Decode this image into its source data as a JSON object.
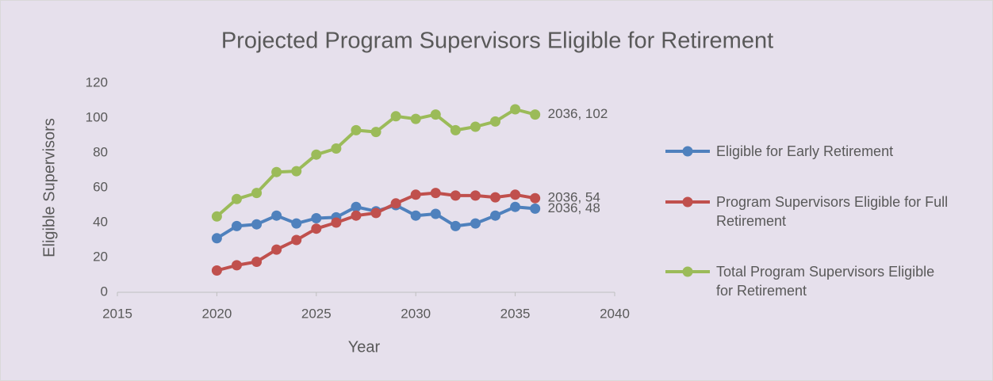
{
  "chart_data": {
    "type": "line",
    "title": "Projected Program Supervisors Eligible for Retirement",
    "x_label": "Year",
    "y_label": "Eligible Supervisors",
    "x": [
      2020,
      2021,
      2022,
      2023,
      2024,
      2025,
      2026,
      2027,
      2028,
      2029,
      2030,
      2031,
      2032,
      2033,
      2034,
      2035,
      2036
    ],
    "series": [
      {
        "name": "Eligible for Early Retirement",
        "color": "#4f81bd",
        "values": [
          31,
          38,
          39,
          44,
          39.5,
          42.5,
          43,
          49,
          46.5,
          50,
          44,
          45,
          38,
          39.5,
          44,
          49,
          48
        ],
        "value_labels": [
          null,
          null,
          null,
          null,
          null,
          null,
          null,
          null,
          null,
          null,
          null,
          null,
          null,
          null,
          null,
          null,
          "2036, 48"
        ]
      },
      {
        "name": "Program Supervisors Eligible for Full Retirement",
        "color": "#c0504d",
        "values": [
          12.5,
          15.5,
          17.5,
          24.5,
          30,
          36.5,
          40,
          44,
          45.5,
          51,
          56,
          57,
          55.5,
          55.5,
          54.5,
          56,
          54
        ],
        "value_labels": [
          null,
          null,
          null,
          null,
          null,
          null,
          null,
          null,
          null,
          null,
          null,
          null,
          null,
          null,
          null,
          null,
          "2036, 54"
        ]
      },
      {
        "name": "Total Program Supervisors Eligible for Retirement",
        "color": "#9bbb59",
        "values": [
          43.5,
          53.5,
          57,
          69,
          69.5,
          79,
          82.5,
          93,
          92,
          101,
          99.5,
          102,
          93,
          95,
          98,
          105,
          102
        ],
        "value_labels": [
          null,
          null,
          null,
          null,
          null,
          null,
          null,
          null,
          null,
          null,
          null,
          null,
          null,
          null,
          null,
          null,
          "2036, 102"
        ]
      }
    ],
    "xlim": [
      2015,
      2040
    ],
    "xticks": [
      2015,
      2020,
      2025,
      2030,
      2035,
      2040
    ],
    "ylim": [
      0,
      120
    ],
    "yticks": [
      0,
      20,
      40,
      60,
      80,
      100,
      120
    ],
    "grid": false,
    "legend": "right"
  }
}
